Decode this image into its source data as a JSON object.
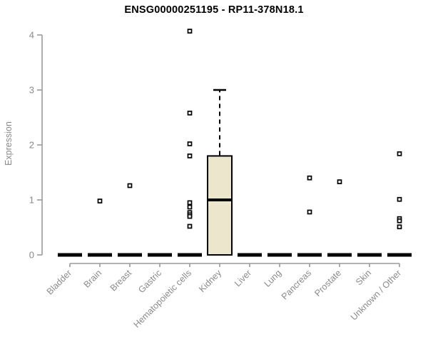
{
  "chart_data": {
    "type": "boxplot",
    "title": "ENSG00000251195 - RP11-378N18.1",
    "ylabel": "Expression",
    "xlabel": "",
    "ylim": [
      0,
      4
    ],
    "yticks": [
      0,
      1,
      2,
      3,
      4
    ],
    "grid": false,
    "legend": "none",
    "categories": [
      "Bladder",
      "Brain",
      "Breast",
      "Gastric",
      "Hematopoietic cells",
      "Kidney",
      "Liver",
      "Lung",
      "Pancreas",
      "Prostate",
      "Skin",
      "Unknown / Other"
    ],
    "series": [
      {
        "name": "Bladder",
        "box": {
          "min": 0,
          "q1": 0,
          "median": 0,
          "q3": 0,
          "max": 0
        },
        "outliers": []
      },
      {
        "name": "Brain",
        "box": {
          "min": 0,
          "q1": 0,
          "median": 0,
          "q3": 0,
          "max": 0
        },
        "outliers": [
          0.98
        ]
      },
      {
        "name": "Breast",
        "box": {
          "min": 0,
          "q1": 0,
          "median": 0,
          "q3": 0,
          "max": 0
        },
        "outliers": [
          1.26
        ]
      },
      {
        "name": "Gastric",
        "box": {
          "min": 0,
          "q1": 0,
          "median": 0,
          "q3": 0,
          "max": 0
        },
        "outliers": []
      },
      {
        "name": "Hematopoietic cells",
        "box": {
          "min": 0,
          "q1": 0,
          "median": 0,
          "q3": 0,
          "max": 0
        },
        "outliers": [
          4.07,
          2.58,
          2.02,
          1.8,
          0.95,
          0.87,
          0.77,
          0.73,
          0.7,
          0.52
        ]
      },
      {
        "name": "Kidney",
        "box": {
          "min": 0,
          "q1": 0,
          "median": 1.0,
          "q3": 1.8,
          "max": 3.0
        },
        "outliers": []
      },
      {
        "name": "Liver",
        "box": {
          "min": 0,
          "q1": 0,
          "median": 0,
          "q3": 0,
          "max": 0
        },
        "outliers": []
      },
      {
        "name": "Lung",
        "box": {
          "min": 0,
          "q1": 0,
          "median": 0,
          "q3": 0,
          "max": 0
        },
        "outliers": []
      },
      {
        "name": "Pancreas",
        "box": {
          "min": 0,
          "q1": 0,
          "median": 0,
          "q3": 0,
          "max": 0
        },
        "outliers": [
          1.4,
          0.78
        ]
      },
      {
        "name": "Prostate",
        "box": {
          "min": 0,
          "q1": 0,
          "median": 0,
          "q3": 0,
          "max": 0
        },
        "outliers": [
          1.33
        ]
      },
      {
        "name": "Skin",
        "box": {
          "min": 0,
          "q1": 0,
          "median": 0,
          "q3": 0,
          "max": 0
        },
        "outliers": []
      },
      {
        "name": "Unknown / Other",
        "box": {
          "min": 0,
          "q1": 0,
          "median": 0,
          "q3": 0,
          "max": 0
        },
        "outliers": [
          1.84,
          1.01,
          0.66,
          0.62,
          0.51
        ]
      }
    ],
    "colors": {
      "box_fill": "#ece6cd",
      "box_stroke": "#000000",
      "median": "#000000",
      "whisker": "#000000",
      "outlier_stroke": "#000000",
      "outlier_fill": "#ffffff",
      "axis_line": "#9a9a9a",
      "tick_label": "#8a8a8a",
      "title": "#000000"
    }
  }
}
